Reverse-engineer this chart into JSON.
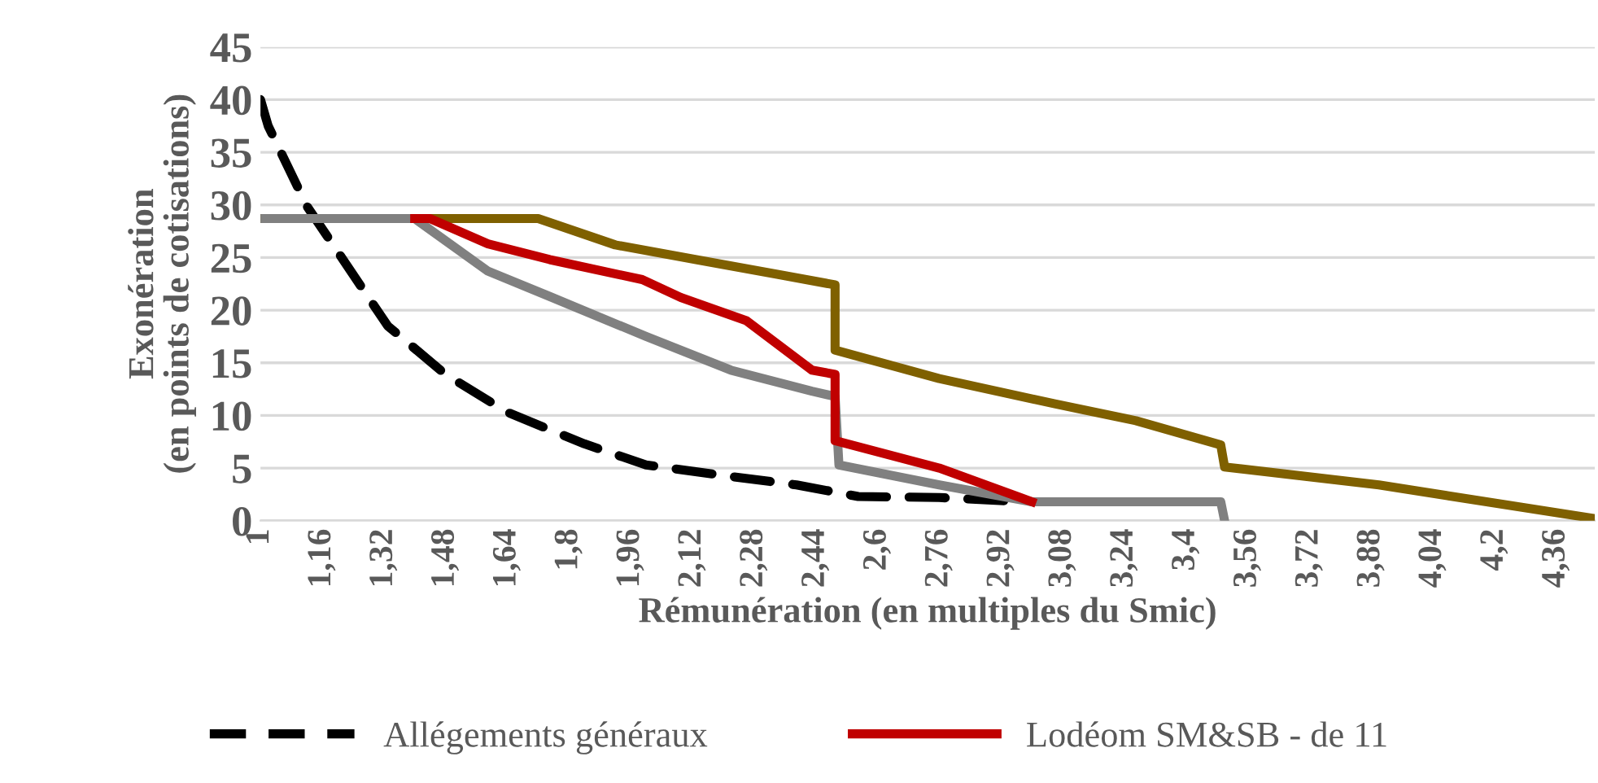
{
  "chart_data": {
    "type": "line",
    "xlabel": "Rémunération (en multiples du Smic)",
    "ylabel": "Exonération\n(en points de cotisations)",
    "xlim": [
      1,
      4.46
    ],
    "ylim": [
      0,
      45
    ],
    "xticks": [
      {
        "value": 1,
        "label": "1"
      },
      {
        "value": 1.16,
        "label": "1,16"
      },
      {
        "value": 1.32,
        "label": "1,32"
      },
      {
        "value": 1.48,
        "label": "1,48"
      },
      {
        "value": 1.64,
        "label": "1,64"
      },
      {
        "value": 1.8,
        "label": "1,8"
      },
      {
        "value": 1.96,
        "label": "1,96"
      },
      {
        "value": 2.12,
        "label": "2,12"
      },
      {
        "value": 2.28,
        "label": "2,28"
      },
      {
        "value": 2.44,
        "label": "2,44"
      },
      {
        "value": 2.6,
        "label": "2,6"
      },
      {
        "value": 2.76,
        "label": "2,76"
      },
      {
        "value": 2.92,
        "label": "2,92"
      },
      {
        "value": 3.08,
        "label": "3,08"
      },
      {
        "value": 3.24,
        "label": "3,24"
      },
      {
        "value": 3.4,
        "label": "3,4"
      },
      {
        "value": 3.56,
        "label": "3,56"
      },
      {
        "value": 3.72,
        "label": "3,72"
      },
      {
        "value": 3.88,
        "label": "3,88"
      },
      {
        "value": 4.04,
        "label": "4,04"
      },
      {
        "value": 4.2,
        "label": "4,2"
      },
      {
        "value": 4.36,
        "label": "4,36"
      }
    ],
    "yticks": [
      0,
      5,
      10,
      15,
      20,
      25,
      30,
      35,
      40,
      45
    ],
    "grid": "y",
    "legend": "bottom",
    "series": [
      {
        "name": "Allégements généraux",
        "color": "#000000",
        "line_style": "dashed",
        "x": [
          1,
          1.02,
          1.12,
          1.33,
          1.48,
          1.64,
          1.84,
          2.0,
          2.22,
          2.39,
          2.55,
          2.76,
          2.93
        ],
        "values": [
          40,
          37.5,
          29.9,
          18.5,
          13.9,
          10.3,
          7.3,
          5.3,
          4.2,
          3.4,
          2.3,
          2.2,
          1.9
        ]
      },
      {
        "color": "#7f6000",
        "line_style": "solid",
        "x": [
          1,
          1.72,
          1.92,
          2.13,
          2.34,
          2.49,
          2.49,
          2.76,
          3.06,
          3.27,
          3.49,
          3.5,
          3.9,
          4.46
        ],
        "values": [
          28.7,
          28.7,
          26.2,
          24.8,
          23.4,
          22.4,
          16.2,
          13.5,
          11.1,
          9.5,
          7.2,
          5.1,
          3.4,
          0.2
        ]
      },
      {
        "color": "#808080",
        "line_style": "solid",
        "x": [
          1,
          1.4,
          1.59,
          1.75,
          2.0,
          2.22,
          2.43,
          2.49,
          2.5,
          2.76,
          3.0,
          3.49,
          3.5
        ],
        "values": [
          28.7,
          28.7,
          23.7,
          21.3,
          17.5,
          14.3,
          12.3,
          11.8,
          5.3,
          3.4,
          1.8,
          1.8,
          0
        ]
      },
      {
        "name": "Lodéom SM&SB - de 11",
        "color": "#c00000",
        "line_style": "solid",
        "x": [
          1.4,
          1.44,
          1.59,
          1.75,
          1.99,
          2.09,
          2.26,
          2.43,
          2.49,
          2.49,
          2.76,
          2.97,
          3.0
        ],
        "values": [
          28.7,
          28.7,
          26.3,
          24.8,
          22.9,
          21.2,
          19.0,
          14.3,
          13.9,
          7.6,
          5.0,
          2.2,
          1.8
        ]
      }
    ]
  }
}
